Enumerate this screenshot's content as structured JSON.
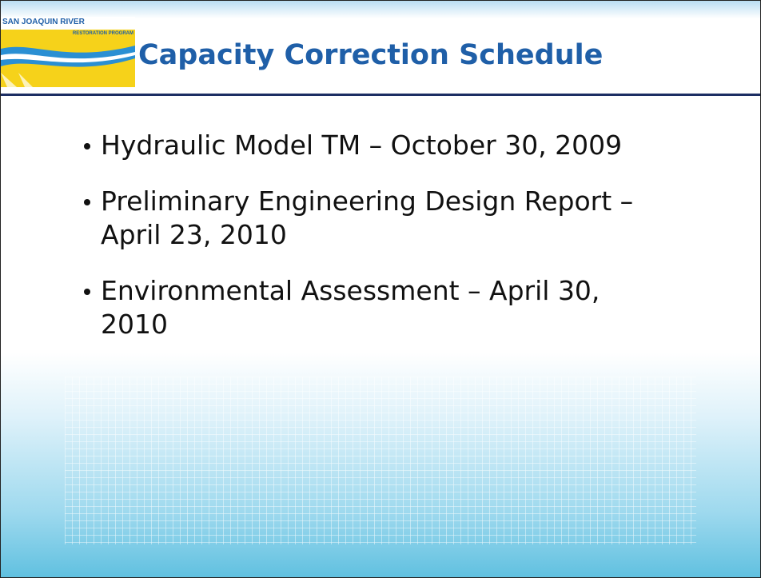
{
  "logo": {
    "name": "SAN JOAQUIN RIVER",
    "subtitle": "RESTORATION PROGRAM"
  },
  "title": "Capacity Correction Schedule",
  "bullets": [
    "Hydraulic Model TM – October 30, 2009",
    "Preliminary Engineering Design Report – April 23, 2010",
    "Environmental Assessment – April 30, 2010"
  ]
}
